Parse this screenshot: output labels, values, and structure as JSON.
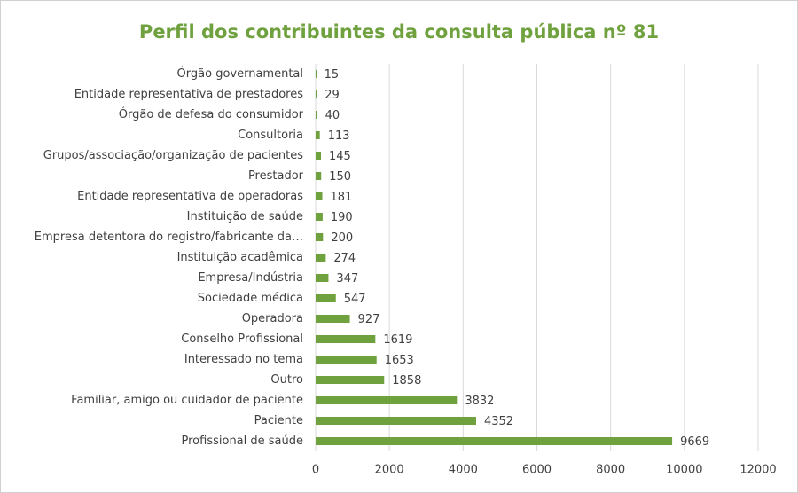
{
  "chart_data": {
    "type": "bar",
    "orientation": "horizontal",
    "title": "Perfil dos contribuintes da consulta pública nº 81",
    "categories": [
      "Órgão governamental",
      "Entidade representativa de prestadores",
      "Órgão de defesa do consumidor",
      "Consultoria",
      "Grupos/associação/organização de pacientes",
      "Prestador",
      "Entidade representativa de operadoras",
      "Instituição de saúde",
      "Empresa detentora do registro/fabricante da…",
      "Instituição acadêmica",
      "Empresa/Indústria",
      "Sociedade médica",
      "Operadora",
      "Conselho Profissional",
      "Interessado no tema",
      "Outro",
      "Familiar, amigo ou cuidador de paciente",
      "Paciente",
      "Profissional de saúde"
    ],
    "values": [
      15,
      29,
      40,
      113,
      145,
      150,
      181,
      190,
      200,
      274,
      347,
      547,
      927,
      1619,
      1653,
      1858,
      3832,
      4352,
      9669
    ],
    "color": "#70a13f",
    "xlim": [
      0,
      12000
    ],
    "xticks": [
      0,
      2000,
      4000,
      6000,
      8000,
      10000,
      12000
    ],
    "grid": true
  }
}
